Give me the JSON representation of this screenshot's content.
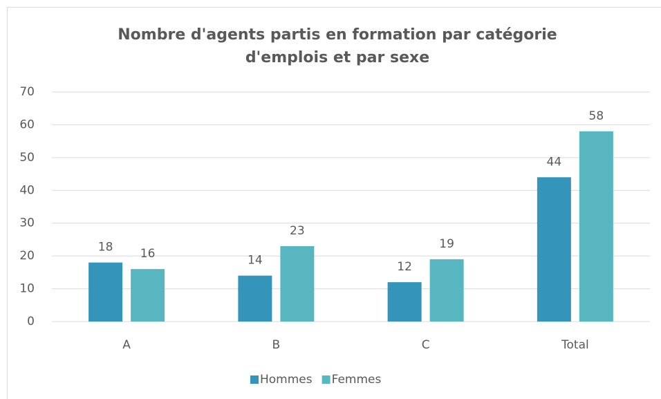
{
  "chart_data": {
    "type": "bar",
    "title": "Nombre d'agents partis en formation par catégorie d'emplois et par sexe",
    "categories": [
      "A",
      "B",
      "C",
      "Total"
    ],
    "series": [
      {
        "name": "Hommes",
        "color": "#3494ba",
        "values": [
          18,
          14,
          12,
          44
        ]
      },
      {
        "name": "Femmes",
        "color": "#58b6c0",
        "values": [
          16,
          23,
          19,
          58
        ]
      }
    ],
    "ylim": [
      0,
      70
    ],
    "yticks": [
      0,
      10,
      20,
      30,
      40,
      50,
      60,
      70
    ],
    "grid": true,
    "legend": "bottom"
  }
}
